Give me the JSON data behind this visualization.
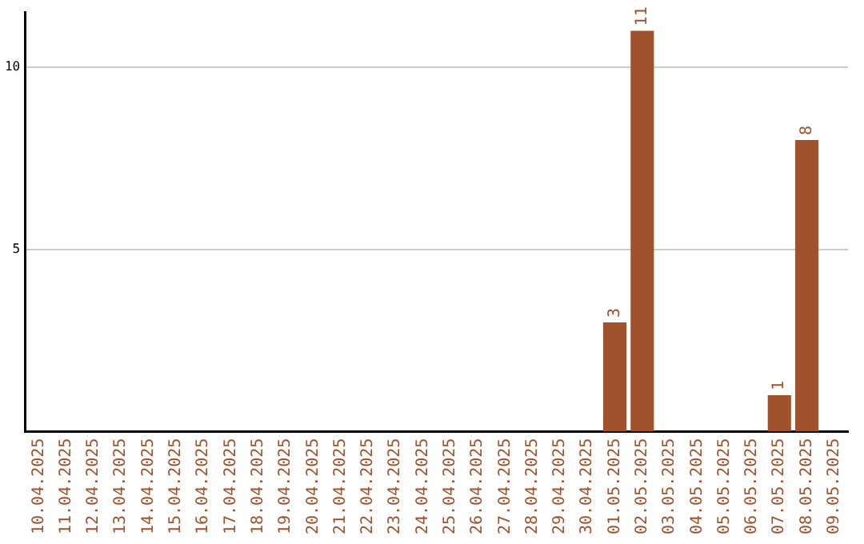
{
  "chart_data": {
    "type": "bar",
    "categories": [
      "10.04.2025",
      "11.04.2025",
      "12.04.2025",
      "13.04.2025",
      "14.04.2025",
      "15.04.2025",
      "16.04.2025",
      "17.04.2025",
      "18.04.2025",
      "19.04.2025",
      "20.04.2025",
      "21.04.2025",
      "22.04.2025",
      "23.04.2025",
      "24.04.2025",
      "25.04.2025",
      "26.04.2025",
      "27.04.2025",
      "28.04.2025",
      "29.04.2025",
      "30.04.2025",
      "01.05.2025",
      "02.05.2025",
      "03.05.2025",
      "04.05.2025",
      "05.05.2025",
      "06.05.2025",
      "07.05.2025",
      "08.05.2025",
      "09.05.2025"
    ],
    "values": [
      0,
      0,
      0,
      0,
      0,
      0,
      0,
      0,
      0,
      0,
      0,
      0,
      0,
      0,
      0,
      0,
      0,
      0,
      0,
      0,
      0,
      3,
      11,
      0,
      0,
      0,
      0,
      1,
      8,
      0
    ],
    "value_labels": [
      null,
      null,
      null,
      null,
      null,
      null,
      null,
      null,
      null,
      null,
      null,
      null,
      null,
      null,
      null,
      null,
      null,
      null,
      null,
      null,
      null,
      "3",
      "11",
      null,
      null,
      null,
      null,
      "1",
      "8",
      null
    ],
    "color": "#a0522d",
    "ylim": [
      0,
      11.5
    ],
    "yticks": [
      5,
      10
    ],
    "grid": "y",
    "legend": false
  }
}
